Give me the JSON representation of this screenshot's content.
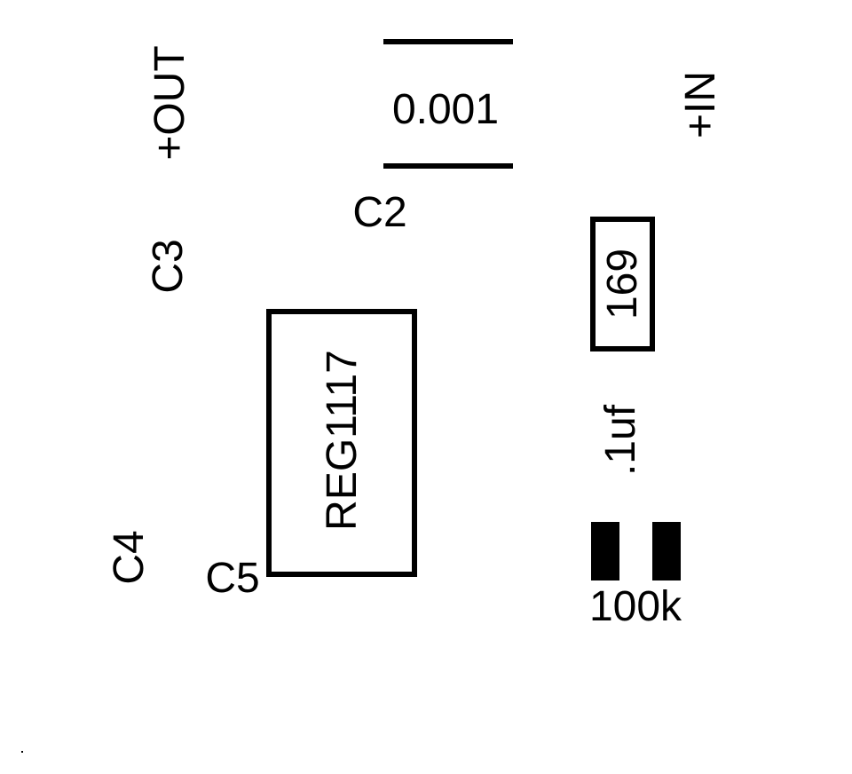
{
  "labels": {
    "out": "+OUT",
    "in": "+IN",
    "c2": "C2",
    "c3": "C3",
    "c4": "C4",
    "c5": "C5",
    "cap_value": "0.001",
    "resistor_value": "169",
    "regulator": "REG1117",
    "cap_small": ".1uf",
    "resistor_100k": "100k"
  },
  "colors": {
    "ink": "#000000",
    "background": "#ffffff"
  }
}
